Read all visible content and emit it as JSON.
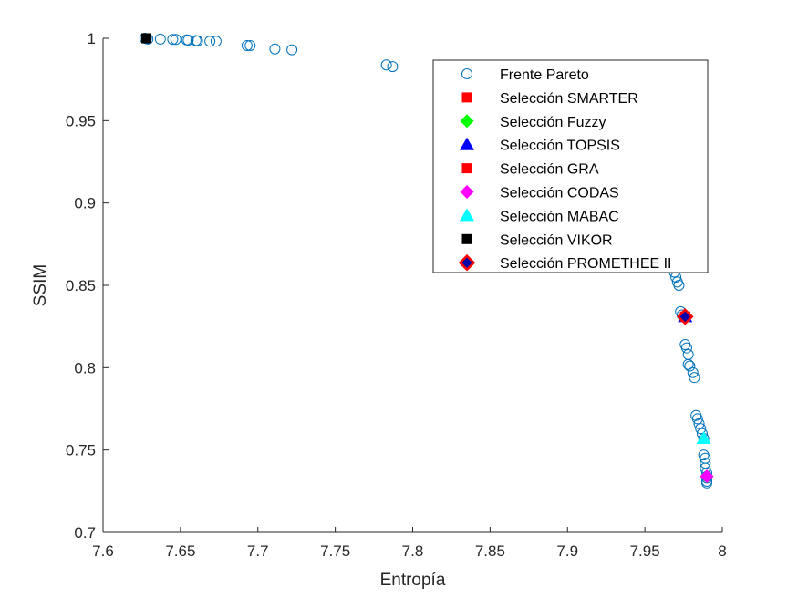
{
  "chart_data": {
    "type": "scatter",
    "xlabel": "Entropía",
    "ylabel": "SSIM",
    "xlim": [
      7.6,
      8.0
    ],
    "ylim": [
      0.7,
      1.0
    ],
    "xticks": [
      "7.6",
      "7.65",
      "7.7",
      "7.75",
      "7.8",
      "7.85",
      "7.9",
      "7.95",
      "8"
    ],
    "yticks": [
      "0.7",
      "0.75",
      "0.8",
      "0.85",
      "0.9",
      "0.95",
      "1"
    ],
    "grid": false,
    "legend_position": "top-right",
    "colors": {
      "pareto": "#0072BD",
      "smarter": "#FF0000",
      "fuzzy": "#00FF00",
      "topsis": "#0000FF",
      "gra": "#FF0000",
      "codas": "#FF00FF",
      "mabac": "#00FFFF",
      "vikor": "#000000",
      "promethee_fill": "#0000AA",
      "promethee_edge": "#FF0000"
    },
    "series": [
      {
        "name": "Frente Pareto",
        "marker": "circle-open",
        "color": "#0072BD",
        "x": [
          7.627,
          7.628,
          7.629,
          7.637,
          7.645,
          7.647,
          7.654,
          7.655,
          7.66,
          7.661,
          7.669,
          7.673,
          7.693,
          7.695,
          7.711,
          7.722,
          7.783,
          7.787,
          7.969,
          7.97,
          7.971,
          7.972,
          7.973,
          7.974,
          7.976,
          7.977,
          7.978,
          7.978,
          7.979,
          7.981,
          7.982,
          7.983,
          7.984,
          7.985,
          7.986,
          7.987,
          7.988,
          7.988,
          7.989,
          7.989,
          7.989,
          7.99,
          7.99,
          7.99,
          7.99,
          7.99
        ],
        "y": [
          1.0,
          0.9998,
          0.9995,
          0.9995,
          0.9993,
          0.9993,
          0.999,
          0.9989,
          0.9986,
          0.9984,
          0.9982,
          0.9982,
          0.9956,
          0.9956,
          0.9935,
          0.993,
          0.9838,
          0.9828,
          0.858,
          0.855,
          0.852,
          0.85,
          0.834,
          0.832,
          0.814,
          0.812,
          0.808,
          0.802,
          0.801,
          0.797,
          0.794,
          0.771,
          0.769,
          0.766,
          0.763,
          0.76,
          0.757,
          0.747,
          0.745,
          0.742,
          0.739,
          0.736,
          0.734,
          0.731,
          0.73,
          0.733
        ]
      },
      {
        "name": "Selección SMARTER",
        "marker": "square",
        "color": "#FF0000",
        "x": [
          7.976
        ],
        "y": [
          0.831
        ]
      },
      {
        "name": "Selección Fuzzy",
        "marker": "diamond",
        "color": "#00FF00",
        "x": [
          7.99
        ],
        "y": [
          0.734
        ]
      },
      {
        "name": "Selección TOPSIS",
        "marker": "triangle",
        "color": "#0000FF",
        "x": [
          7.976
        ],
        "y": [
          0.831
        ]
      },
      {
        "name": "Selección GRA",
        "marker": "square",
        "color": "#FF0000",
        "x": [
          7.976
        ],
        "y": [
          0.831
        ]
      },
      {
        "name": "Selección CODAS",
        "marker": "diamond",
        "color": "#FF00FF",
        "x": [
          7.99
        ],
        "y": [
          0.734
        ]
      },
      {
        "name": "Selección MABAC",
        "marker": "triangle",
        "color": "#00FFFF",
        "x": [
          7.988
        ],
        "y": [
          0.757
        ]
      },
      {
        "name": "Selección VIKOR",
        "marker": "square",
        "color": "#000000",
        "x": [
          7.628
        ],
        "y": [
          1.0
        ]
      },
      {
        "name": "Selección PROMETHEE II",
        "marker": "diamond-edge",
        "color": "#0000AA",
        "edge": "#FF0000",
        "x": [
          7.976
        ],
        "y": [
          0.831
        ]
      }
    ]
  }
}
